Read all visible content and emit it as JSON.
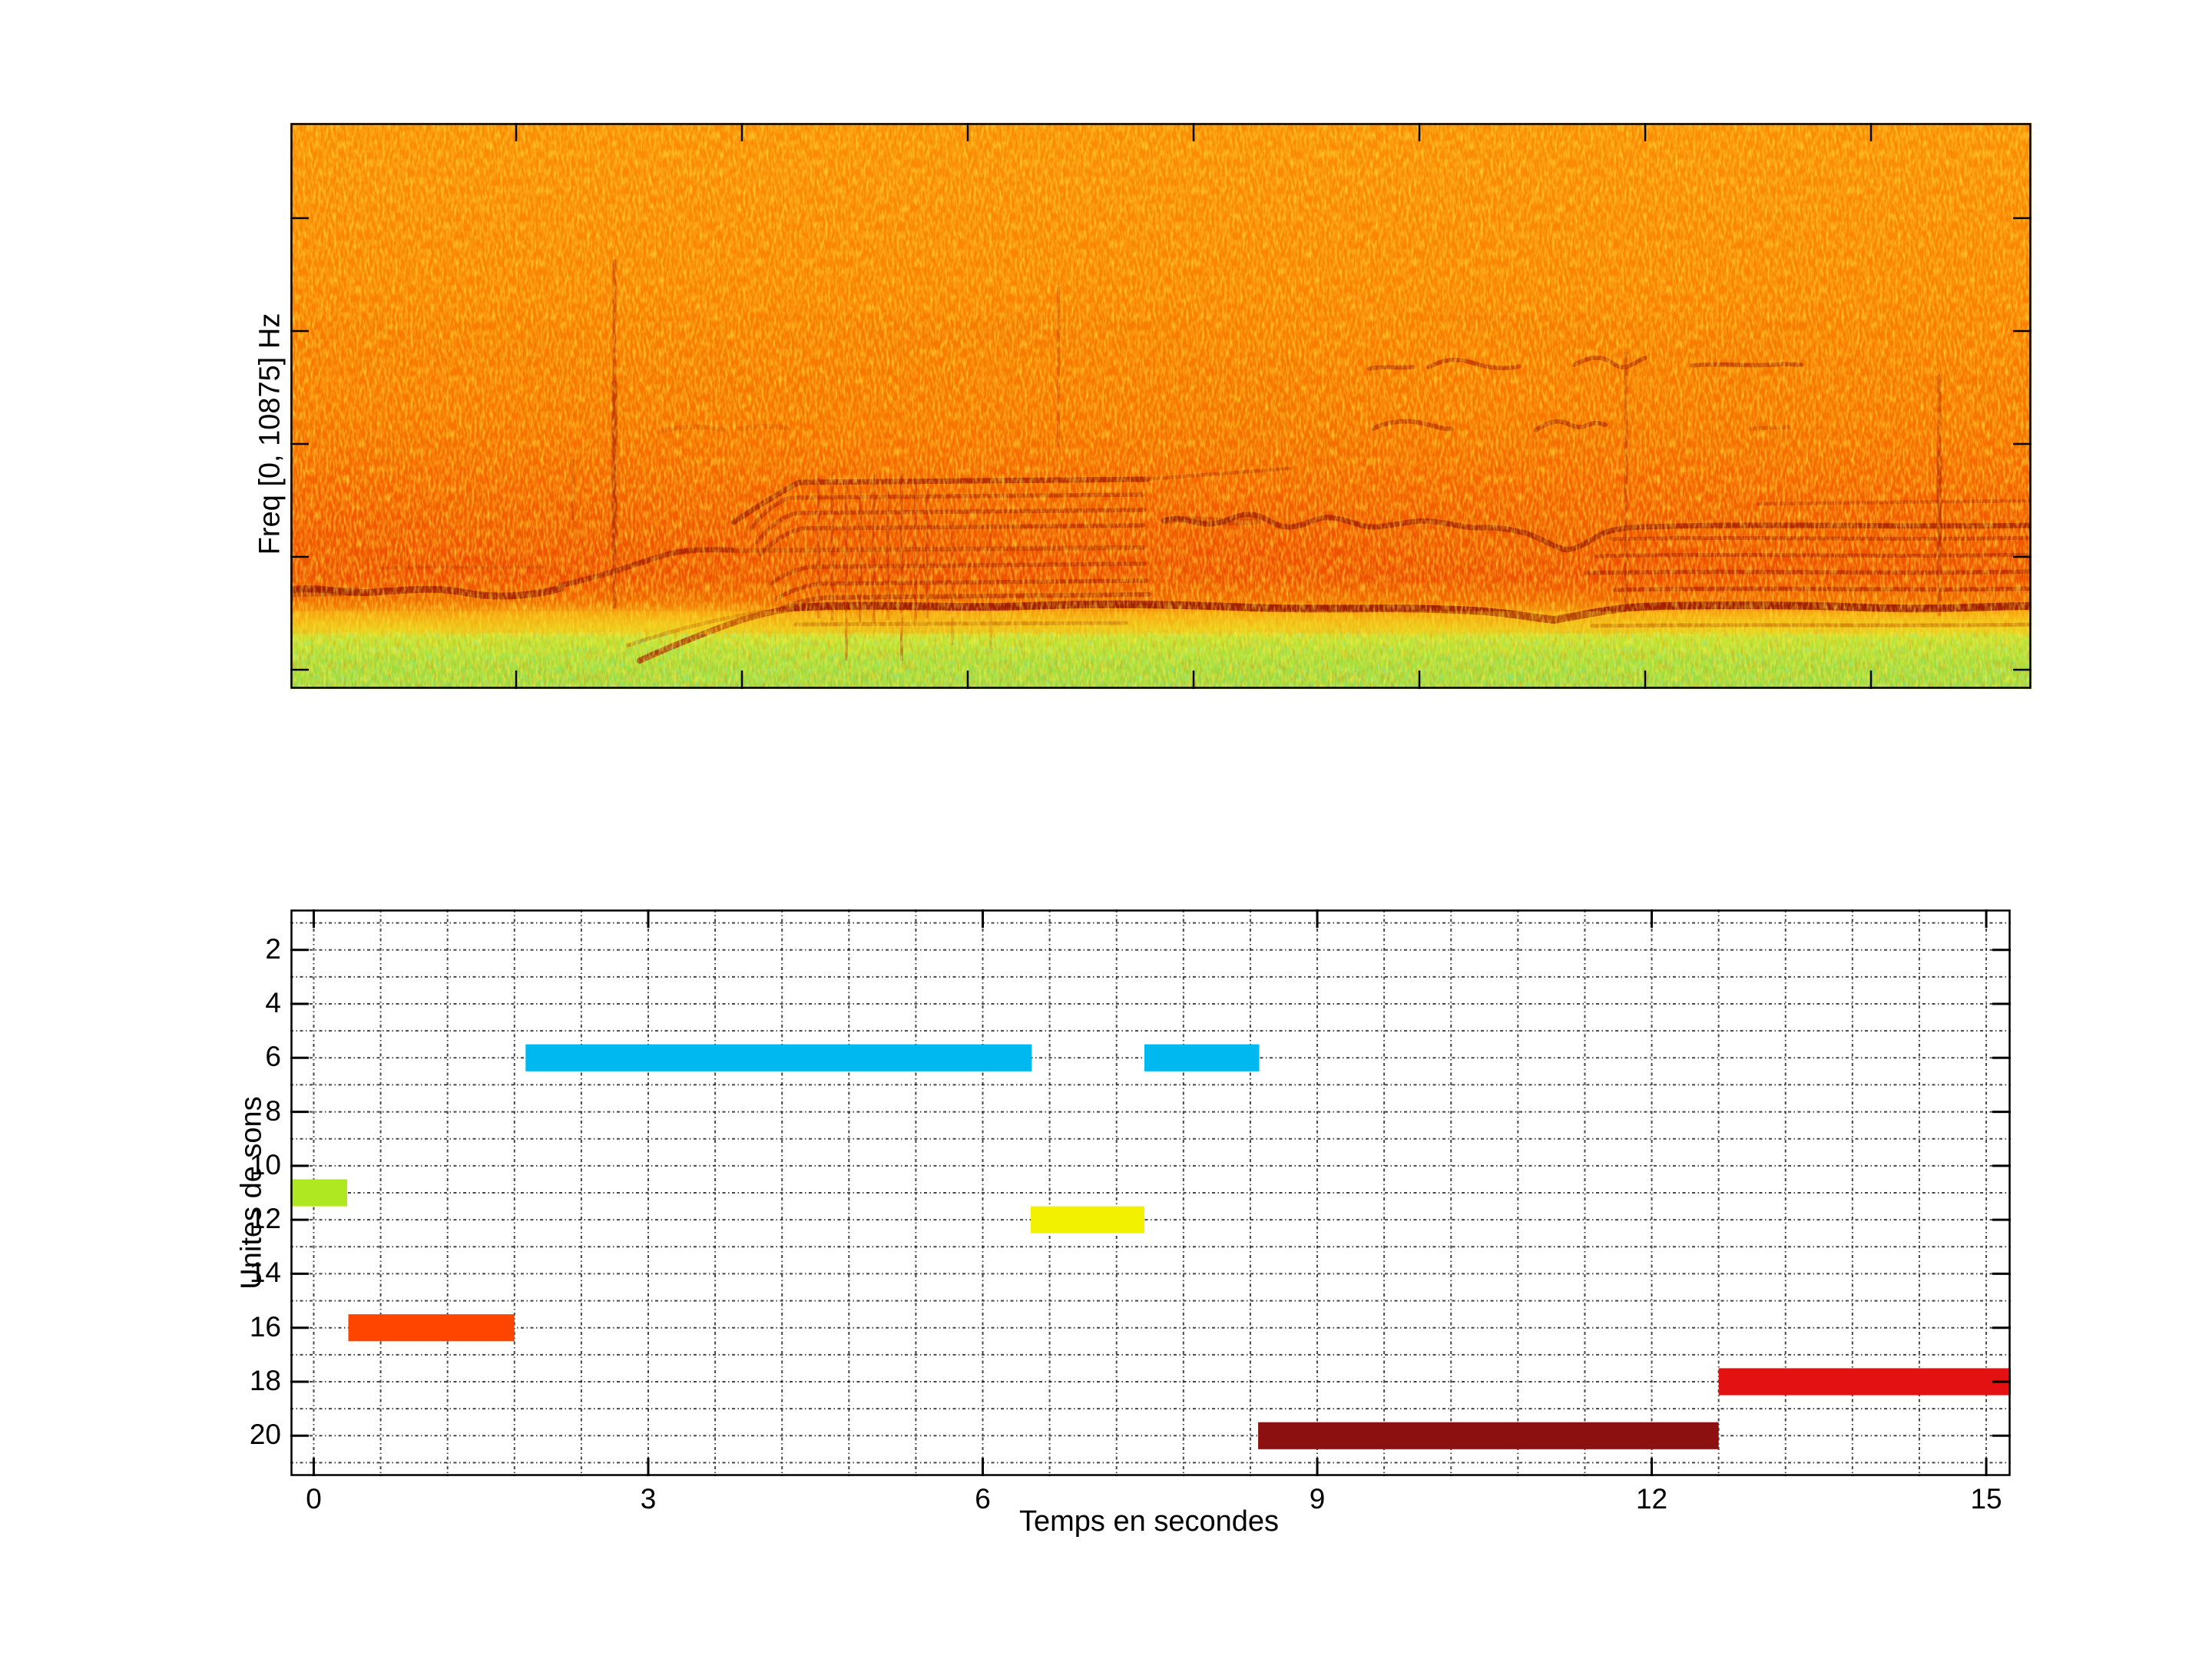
{
  "figure": {
    "background": "#ffffff",
    "panels": 2,
    "style": "matlab-figure"
  },
  "top_plot": {
    "ylabel": "Freq [0, 10875] Hz",
    "has_tick_labels": false
  },
  "bottom_plot": {
    "xlabel": "Temps en secondes",
    "ylabel": "Unites de sons"
  },
  "chart_data": [
    {
      "type": "heatmap",
      "subtype": "spectrogram",
      "title": "",
      "ylabel": "Freq [0, 10875] Hz",
      "freq_range_hz": [
        0,
        10875
      ],
      "time_range_s": [
        0,
        15
      ],
      "colormap": "jet",
      "palette": {
        "noise_field": "#F87800",
        "hot_speckle": "#FFD61E",
        "deep_red_band": "#EE4A00",
        "yellow_transition": "#F5B115",
        "low_band_green": "#A5DF3C",
        "low_band_cyan_speckle": "#2BD8AC",
        "harmonic_lines": "#9E1900"
      },
      "features": [
        "broadband orange noise field",
        "dark fundamental line near bottom of red zone, full width",
        "harmonic stack with vertical striations around 4.5-5.5 s",
        "wavy harmonic lines and stacked partials on right half",
        "green low-energy band along bottom edge"
      ]
    },
    {
      "type": "bar",
      "orientation": "horizontal-segments",
      "title": "",
      "xlabel": "Temps en secondes",
      "ylabel": "Unites de sons",
      "xlim": [
        -0.21,
        15.22
      ],
      "ylim": [
        0.5,
        21.5
      ],
      "y_axis_reversed": true,
      "xticks": [
        0,
        3,
        6,
        9,
        12,
        15
      ],
      "xtick_labels": [
        "0",
        "3",
        "6",
        "9",
        "12",
        "15"
      ],
      "yticks": [
        2,
        4,
        6,
        8,
        10,
        12,
        14,
        16,
        18,
        20
      ],
      "ytick_labels": [
        "2",
        "4",
        "6",
        "8",
        "10",
        "12",
        "14",
        "16",
        "18",
        "20"
      ],
      "grid": {
        "x_step": 0.6,
        "y_step": 1,
        "style": "dotted"
      },
      "bar_height": 1,
      "segments": [
        {
          "unit": 11,
          "start": -0.21,
          "end": 0.3,
          "color": "#AFE821"
        },
        {
          "unit": 16,
          "start": 0.31,
          "end": 1.8,
          "color": "#FF4500"
        },
        {
          "unit": 6,
          "start": 1.9,
          "end": 6.44,
          "color": "#00B8F0"
        },
        {
          "unit": 12,
          "start": 6.43,
          "end": 7.45,
          "color": "#F2F200"
        },
        {
          "unit": 6,
          "start": 7.45,
          "end": 8.48,
          "color": "#00B8F0"
        },
        {
          "unit": 20,
          "start": 8.47,
          "end": 12.6,
          "color": "#8D1010"
        },
        {
          "unit": 18,
          "start": 12.6,
          "end": 15.22,
          "color": "#E31111"
        }
      ]
    }
  ]
}
